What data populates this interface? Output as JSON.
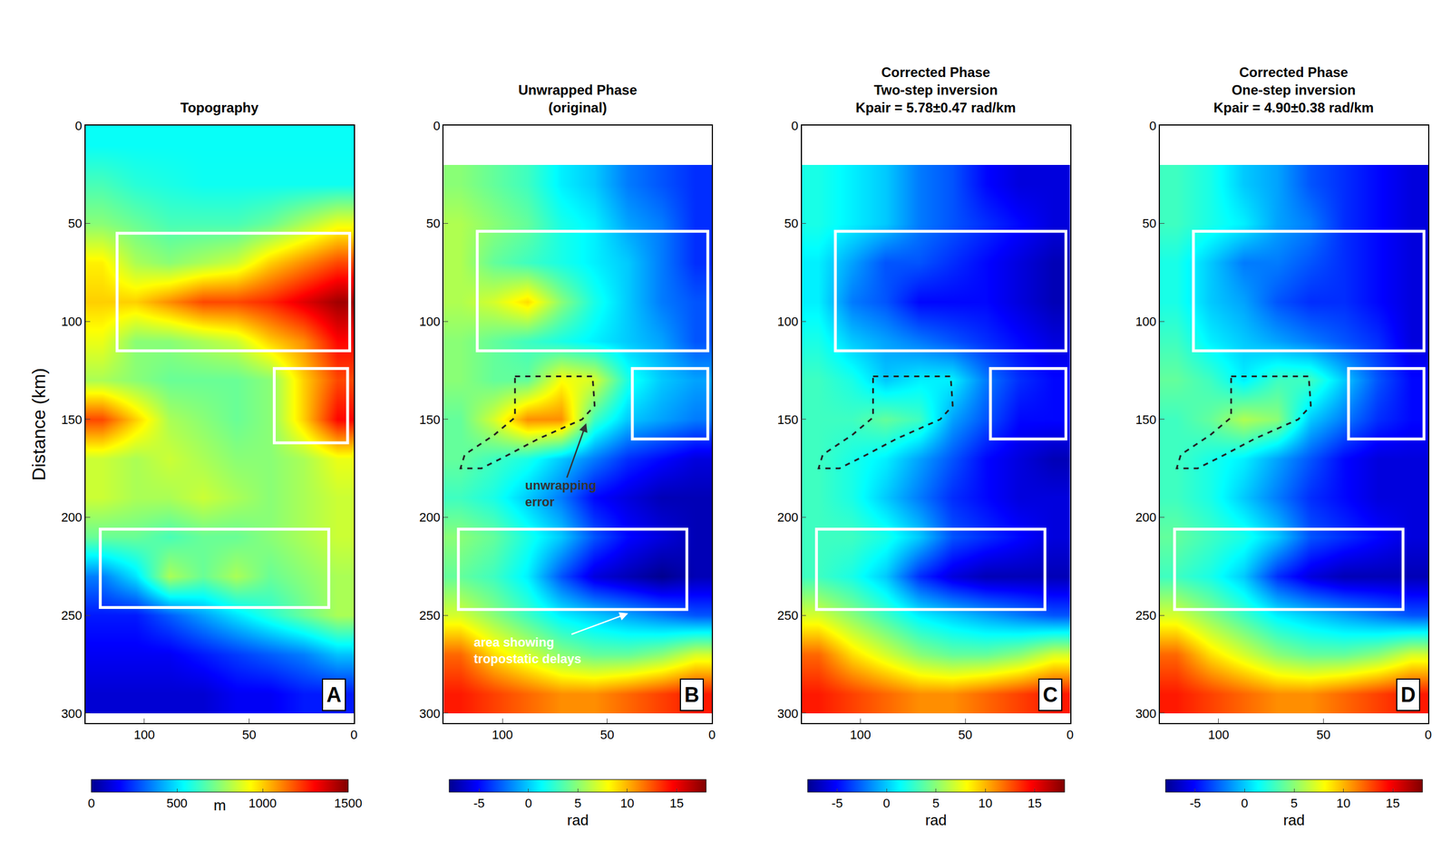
{
  "chart_data": [
    {
      "type": "heatmap",
      "letter": "A",
      "title": [
        "Topography"
      ],
      "ylabel": "Distance (km)",
      "x": [
        120,
        104,
        88,
        72,
        56,
        40,
        24,
        8
      ],
      "y": [
        10,
        30,
        50,
        70,
        90,
        110,
        130,
        150,
        170,
        190,
        210,
        230,
        250,
        270,
        290
      ],
      "z": [
        [
          550,
          550,
          550,
          550,
          550,
          550,
          550,
          550
        ],
        [
          650,
          600,
          580,
          560,
          560,
          560,
          560,
          560
        ],
        [
          750,
          700,
          650,
          650,
          650,
          700,
          800,
          900
        ],
        [
          950,
          800,
          750,
          800,
          850,
          1000,
          1100,
          1200
        ],
        [
          1000,
          1000,
          1100,
          1200,
          1200,
          1250,
          1350,
          1450
        ],
        [
          900,
          750,
          750,
          800,
          850,
          1000,
          1100,
          1300
        ],
        [
          800,
          750,
          700,
          700,
          700,
          750,
          1000,
          1200
        ],
        [
          1200,
          1000,
          800,
          750,
          700,
          750,
          1000,
          1300
        ],
        [
          850,
          800,
          850,
          800,
          750,
          750,
          800,
          900
        ],
        [
          850,
          800,
          800,
          850,
          800,
          750,
          800,
          850
        ],
        [
          700,
          700,
          650,
          700,
          700,
          750,
          800,
          850
        ],
        [
          350,
          500,
          800,
          700,
          800,
          700,
          750,
          800
        ],
        [
          200,
          200,
          300,
          400,
          500,
          600,
          700,
          800
        ],
        [
          150,
          150,
          150,
          200,
          250,
          300,
          350,
          450
        ],
        [
          100,
          100,
          100,
          100,
          150,
          150,
          200,
          200
        ]
      ],
      "xlim": [
        128,
        0
      ],
      "ylim": [
        305,
        0
      ],
      "xticks": [
        100,
        50,
        0
      ],
      "yticks": [
        0,
        50,
        100,
        150,
        200,
        250,
        300
      ],
      "colorbar": {
        "range": [
          0,
          1500
        ],
        "ticks": [
          0,
          500,
          1000,
          1500
        ],
        "title": "m"
      },
      "boxes": [
        {
          "x": [
            113,
            2
          ],
          "y": [
            55,
            115
          ]
        },
        {
          "x": [
            38,
            3
          ],
          "y": [
            124,
            162
          ]
        },
        {
          "x": [
            121,
            12
          ],
          "y": [
            206,
            246
          ]
        }
      ]
    },
    {
      "type": "heatmap",
      "letter": "B",
      "title": [
        "Unwrapped Phase",
        "(original)"
      ],
      "x": [
        120,
        104,
        88,
        72,
        56,
        40,
        24,
        8
      ],
      "y": [
        10,
        30,
        50,
        70,
        90,
        110,
        130,
        150,
        170,
        190,
        210,
        230,
        250,
        270,
        290
      ],
      "z": [
        [
          null,
          null,
          null,
          null,
          null,
          null,
          null,
          null
        ],
        [
          5,
          4,
          3,
          1,
          0,
          -2,
          -3,
          -4
        ],
        [
          6,
          5,
          4,
          2,
          1,
          -1,
          -2,
          -4
        ],
        [
          6,
          4,
          3,
          2,
          1,
          0,
          -2,
          -4
        ],
        [
          6,
          7,
          9,
          5,
          2,
          0,
          -2,
          -3
        ],
        [
          5,
          4,
          3,
          2,
          1,
          0,
          -1,
          -3
        ],
        [
          5,
          4,
          4,
          8,
          7,
          2,
          0,
          -1
        ],
        [
          4,
          7,
          11,
          11,
          3,
          0,
          -1,
          -2
        ],
        [
          4,
          3,
          2,
          0,
          -2,
          -4,
          -5,
          -6
        ],
        [
          3,
          2,
          0,
          -2,
          -5,
          -6,
          -7,
          -7
        ],
        [
          5,
          4,
          2,
          0,
          -3,
          -5,
          -6,
          -7
        ],
        [
          4,
          3,
          1,
          -3,
          -6,
          -7,
          -8,
          -7
        ],
        [
          7,
          5,
          3,
          1,
          0,
          -1,
          -2,
          -3
        ],
        [
          12,
          9,
          7,
          5,
          4,
          4,
          5,
          7
        ],
        [
          14,
          13,
          12,
          11,
          11,
          12,
          13,
          14
        ]
      ],
      "xlim": [
        128,
        0
      ],
      "ylim": [
        305,
        0
      ],
      "xticks": [
        100,
        50,
        0
      ],
      "yticks": [
        0,
        50,
        100,
        150,
        200,
        250,
        300
      ],
      "colorbar": {
        "range": [
          -8,
          18
        ],
        "ticks": [
          -5,
          0,
          5,
          10,
          15
        ],
        "title": "rad"
      },
      "boxes": [
        {
          "x": [
            112,
            2
          ],
          "y": [
            54,
            115
          ]
        },
        {
          "x": [
            38,
            2
          ],
          "y": [
            124,
            160
          ]
        },
        {
          "x": [
            121,
            12
          ],
          "y": [
            206,
            247
          ]
        }
      ],
      "polygon": {
        "x": [
          94,
          57,
          56,
          62,
          83,
          97,
          110,
          120,
          118,
          104,
          94
        ],
        "y": [
          128,
          128,
          143,
          150,
          160,
          168,
          175,
          175,
          168,
          158,
          149
        ]
      },
      "annotations": [
        {
          "text": [
            "unwrapping",
            "error"
          ],
          "x": 60,
          "y": 152,
          "ax": 72,
          "ay": 188,
          "color": "#333333"
        },
        {
          "text": [
            "area showing",
            "tropostatic delays"
          ],
          "x": 40,
          "y": 249,
          "ax": 88,
          "ay": 268,
          "color": "#ffffff"
        }
      ]
    },
    {
      "type": "heatmap",
      "letter": "C",
      "title": [
        "Corrected Phase",
        "Two-step inversion",
        "Kpair = 5.78±0.47 rad/km"
      ],
      "x": [
        120,
        104,
        88,
        72,
        56,
        40,
        24,
        8
      ],
      "y": [
        10,
        30,
        50,
        70,
        90,
        110,
        130,
        150,
        170,
        190,
        210,
        230,
        250,
        270,
        290
      ],
      "z": [
        [
          null,
          null,
          null,
          null,
          null,
          null,
          null,
          null
        ],
        [
          2,
          1,
          0,
          -2,
          -3,
          -5,
          -6,
          -6
        ],
        [
          2,
          1,
          0,
          -2,
          -3,
          -4,
          -5,
          -6
        ],
        [
          1,
          -1,
          -3,
          -3,
          -4,
          -5,
          -6,
          -7
        ],
        [
          1,
          -2,
          -3,
          -5,
          -5,
          -5,
          -6,
          -7
        ],
        [
          2,
          0,
          -1,
          -2,
          -3,
          -4,
          -5,
          -6
        ],
        [
          3,
          2,
          0,
          1,
          1,
          -2,
          -4,
          -5
        ],
        [
          3,
          3,
          4,
          3,
          -1,
          -3,
          -5,
          -5
        ],
        [
          3,
          2,
          1,
          -1,
          -3,
          -5,
          -6,
          -7
        ],
        [
          3,
          2,
          0,
          -2,
          -4,
          -5,
          -6,
          -6
        ],
        [
          3,
          3,
          2,
          0,
          -3,
          -4,
          -5,
          -6
        ],
        [
          3,
          2,
          0,
          -4,
          -6,
          -7,
          -7,
          -7
        ],
        [
          7,
          5,
          3,
          1,
          0,
          -1,
          -2,
          -3
        ],
        [
          12,
          9,
          7,
          5,
          4,
          4,
          5,
          7
        ],
        [
          14,
          13,
          12,
          11,
          11,
          12,
          13,
          14
        ]
      ],
      "xlim": [
        128,
        0
      ],
      "ylim": [
        305,
        0
      ],
      "xticks": [
        100,
        50,
        0
      ],
      "yticks": [
        0,
        50,
        100,
        150,
        200,
        250,
        300
      ],
      "colorbar": {
        "range": [
          -8,
          18
        ],
        "ticks": [
          -5,
          0,
          5,
          10,
          15
        ],
        "title": "rad"
      },
      "boxes": [
        {
          "x": [
            112,
            2
          ],
          "y": [
            54,
            115
          ]
        },
        {
          "x": [
            38,
            2
          ],
          "y": [
            124,
            160
          ]
        },
        {
          "x": [
            121,
            12
          ],
          "y": [
            206,
            247
          ]
        }
      ],
      "polygon": {
        "x": [
          94,
          57,
          56,
          62,
          83,
          97,
          110,
          120,
          118,
          104,
          94
        ],
        "y": [
          128,
          128,
          143,
          150,
          160,
          168,
          175,
          175,
          168,
          158,
          149
        ]
      }
    },
    {
      "type": "heatmap",
      "letter": "D",
      "title": [
        "Corrected Phase",
        "One-step inversion",
        "Kpair = 4.90±0.38 rad/km"
      ],
      "x": [
        120,
        104,
        88,
        72,
        56,
        40,
        24,
        8
      ],
      "y": [
        10,
        30,
        50,
        70,
        90,
        110,
        130,
        150,
        170,
        190,
        210,
        230,
        250,
        270,
        290
      ],
      "z": [
        [
          null,
          null,
          null,
          null,
          null,
          null,
          null,
          null
        ],
        [
          3,
          2,
          0,
          -1,
          -3,
          -4,
          -5,
          -6
        ],
        [
          3,
          2,
          1,
          -1,
          -2,
          -4,
          -5,
          -6
        ],
        [
          2,
          0,
          -2,
          -2,
          -3,
          -4,
          -5,
          -6
        ],
        [
          2,
          0,
          -1,
          -3,
          -4,
          -4,
          -5,
          -6
        ],
        [
          3,
          1,
          0,
          -1,
          -2,
          -3,
          -4,
          -6
        ],
        [
          4,
          3,
          1,
          3,
          3,
          0,
          -3,
          -5
        ],
        [
          3,
          4,
          6,
          5,
          0,
          -2,
          -4,
          -5
        ],
        [
          3,
          2,
          1,
          -1,
          -3,
          -5,
          -6,
          -6
        ],
        [
          3,
          2,
          0,
          -2,
          -4,
          -5,
          -6,
          -6
        ],
        [
          4,
          3,
          2,
          0,
          -3,
          -4,
          -5,
          -6
        ],
        [
          3,
          2,
          0,
          -4,
          -6,
          -7,
          -7,
          -7
        ],
        [
          7,
          5,
          3,
          1,
          0,
          -1,
          -2,
          -3
        ],
        [
          12,
          9,
          7,
          5,
          4,
          4,
          5,
          7
        ],
        [
          14,
          13,
          12,
          11,
          11,
          12,
          13,
          14
        ]
      ],
      "xlim": [
        128,
        0
      ],
      "ylim": [
        305,
        0
      ],
      "xticks": [
        100,
        50,
        0
      ],
      "yticks": [
        0,
        50,
        100,
        150,
        200,
        250,
        300
      ],
      "colorbar": {
        "range": [
          -8,
          18
        ],
        "ticks": [
          -5,
          0,
          5,
          10,
          15
        ],
        "title": "rad"
      },
      "boxes": [
        {
          "x": [
            112,
            2
          ],
          "y": [
            54,
            115
          ]
        },
        {
          "x": [
            38,
            2
          ],
          "y": [
            124,
            160
          ]
        },
        {
          "x": [
            121,
            12
          ],
          "y": [
            206,
            247
          ]
        }
      ],
      "polygon": {
        "x": [
          94,
          57,
          56,
          62,
          83,
          97,
          110,
          120,
          118,
          104,
          94
        ],
        "y": [
          128,
          128,
          143,
          150,
          160,
          168,
          175,
          175,
          168,
          158,
          149
        ]
      }
    }
  ]
}
